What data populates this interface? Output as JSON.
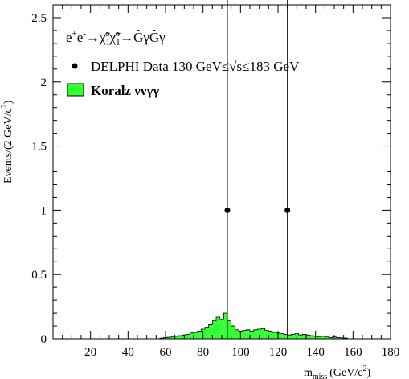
{
  "chart_data": {
    "type": "bar",
    "title_process": {
      "parts": [
        "e",
        "+",
        "e",
        "-",
        "→",
        "χ̃",
        "1",
        "o",
        "χ̃",
        "1",
        "o",
        "→",
        "G̃γG̃γ"
      ]
    },
    "xlabel": {
      "main": "m",
      "sub": "miss",
      "unit": "(GeV/c",
      "sup": "2",
      "close": ")"
    },
    "ylabel": {
      "main": "Events/(2 GeV/c",
      "sup": "2",
      "close": ")"
    },
    "xlim": [
      0,
      180
    ],
    "ylim": [
      0,
      2.6
    ],
    "xticks": [
      "20",
      "40",
      "60",
      "80",
      "100",
      "120",
      "140",
      "160",
      "180"
    ],
    "yticks": [
      "0",
      "0.5",
      "1",
      "1.5",
      "2",
      "2.5"
    ],
    "legend": [
      {
        "kind": "marker",
        "label": "DELPHI Data 130 GeV≤√s≤183 GeV"
      },
      {
        "kind": "fill",
        "label": "Koralz ννγγ"
      }
    ],
    "mc_fill_color": "#33ff33",
    "mc_bin_width": 2,
    "mc_bins": [
      {
        "x": 58,
        "y": 0.005
      },
      {
        "x": 60,
        "y": 0.01
      },
      {
        "x": 62,
        "y": 0.012
      },
      {
        "x": 64,
        "y": 0.015
      },
      {
        "x": 66,
        "y": 0.02
      },
      {
        "x": 68,
        "y": 0.025
      },
      {
        "x": 70,
        "y": 0.03
      },
      {
        "x": 72,
        "y": 0.035
      },
      {
        "x": 74,
        "y": 0.045
      },
      {
        "x": 76,
        "y": 0.05
      },
      {
        "x": 78,
        "y": 0.06
      },
      {
        "x": 80,
        "y": 0.075
      },
      {
        "x": 82,
        "y": 0.09
      },
      {
        "x": 84,
        "y": 0.11
      },
      {
        "x": 86,
        "y": 0.14
      },
      {
        "x": 88,
        "y": 0.17
      },
      {
        "x": 90,
        "y": 0.15
      },
      {
        "x": 92,
        "y": 0.2
      },
      {
        "x": 94,
        "y": 0.14
      },
      {
        "x": 96,
        "y": 0.1
      },
      {
        "x": 98,
        "y": 0.07
      },
      {
        "x": 100,
        "y": 0.06
      },
      {
        "x": 102,
        "y": 0.065
      },
      {
        "x": 104,
        "y": 0.07
      },
      {
        "x": 106,
        "y": 0.06
      },
      {
        "x": 108,
        "y": 0.07
      },
      {
        "x": 110,
        "y": 0.075
      },
      {
        "x": 112,
        "y": 0.08
      },
      {
        "x": 114,
        "y": 0.065
      },
      {
        "x": 116,
        "y": 0.06
      },
      {
        "x": 118,
        "y": 0.05
      },
      {
        "x": 120,
        "y": 0.045
      },
      {
        "x": 122,
        "y": 0.04
      },
      {
        "x": 124,
        "y": 0.035
      },
      {
        "x": 126,
        "y": 0.03
      },
      {
        "x": 128,
        "y": 0.035
      },
      {
        "x": 130,
        "y": 0.04
      },
      {
        "x": 132,
        "y": 0.03
      },
      {
        "x": 134,
        "y": 0.035
      },
      {
        "x": 136,
        "y": 0.03
      },
      {
        "x": 138,
        "y": 0.025
      },
      {
        "x": 140,
        "y": 0.02
      },
      {
        "x": 142,
        "y": 0.015
      },
      {
        "x": 144,
        "y": 0.02
      },
      {
        "x": 146,
        "y": 0.015
      },
      {
        "x": 148,
        "y": 0.01
      },
      {
        "x": 150,
        "y": 0.015
      },
      {
        "x": 152,
        "y": 0.01
      },
      {
        "x": 154,
        "y": 0.008
      },
      {
        "x": 156,
        "y": 0.006
      }
    ],
    "data_points": [
      {
        "x": 93,
        "y": 1,
        "yerr_low": 1,
        "yerr_high": 2
      },
      {
        "x": 125,
        "y": 1,
        "yerr_low": 1,
        "yerr_high": 2
      }
    ]
  }
}
